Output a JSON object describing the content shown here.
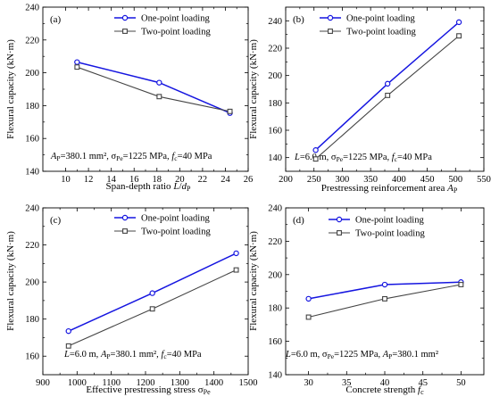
{
  "chart_data": [
    {
      "type": "line",
      "panel_label": "(a)",
      "xlabel": "Span-depth ratio L/dP",
      "ylabel": "Flexural capacity (kN·m)",
      "xlim": [
        8,
        26
      ],
      "ylim": [
        140,
        240
      ],
      "xticks": [
        10,
        12,
        14,
        16,
        18,
        20,
        22,
        24,
        26
      ],
      "yticks": [
        140,
        160,
        180,
        200,
        220,
        240
      ],
      "annotation": "AP=380.1 mm², σPe=1225 MPa, fc=40 MPa",
      "legend_position": "top-right",
      "grid": false,
      "series": [
        {
          "name": "One-point loading",
          "color": "#1515e0",
          "marker": "circle",
          "x": [
            11,
            18.2,
            24.4
          ],
          "y": [
            206.5,
            194,
            175.5
          ]
        },
        {
          "name": "Two-point loading",
          "color": "#444444",
          "marker": "square",
          "x": [
            11,
            18.2,
            24.4
          ],
          "y": [
            203.5,
            185.5,
            176.5
          ]
        }
      ]
    },
    {
      "type": "line",
      "panel_label": "(b)",
      "xlabel": "Prestressing reinforcement area AP",
      "ylabel": "Flexural capacity (kN·m)",
      "xlim": [
        200,
        550
      ],
      "ylim": [
        130,
        250
      ],
      "xticks": [
        200,
        250,
        300,
        350,
        400,
        450,
        500,
        550
      ],
      "yticks": [
        140,
        160,
        180,
        200,
        220,
        240
      ],
      "annotation": "L=6.0 m, σPe=1225 MPa, fc=40 MPa",
      "legend_position": "top-left",
      "grid": false,
      "series": [
        {
          "name": "One-point loading",
          "color": "#1515e0",
          "marker": "circle",
          "x": [
            253,
            380,
            506
          ],
          "y": [
            145.5,
            194,
            239
          ]
        },
        {
          "name": "Two-point loading",
          "color": "#444444",
          "marker": "square",
          "x": [
            253,
            380,
            506
          ],
          "y": [
            139,
            185.5,
            229
          ]
        }
      ]
    },
    {
      "type": "line",
      "panel_label": "(c)",
      "xlabel": "Effective prestressing stress σPe",
      "ylabel": "Flexural capacity (kN·m)",
      "xlim": [
        900,
        1500
      ],
      "ylim": [
        150,
        240
      ],
      "xticks": [
        900,
        1000,
        1100,
        1200,
        1300,
        1400,
        1500
      ],
      "yticks": [
        160,
        180,
        200,
        220,
        240
      ],
      "annotation": "L=6.0 m, AP=380.1 mm², fc=40 MPa",
      "legend_position": "top-right",
      "grid": false,
      "series": [
        {
          "name": "One-point loading",
          "color": "#1515e0",
          "marker": "circle",
          "x": [
            975,
            1220,
            1465
          ],
          "y": [
            173.5,
            194,
            215.5
          ]
        },
        {
          "name": "Two-point loading",
          "color": "#444444",
          "marker": "square",
          "x": [
            975,
            1220,
            1465
          ],
          "y": [
            165.5,
            185.5,
            206.5
          ]
        }
      ]
    },
    {
      "type": "line",
      "panel_label": "(d)",
      "xlabel": "Concrete strength fc",
      "ylabel": "Flexural capacity (kN·m)",
      "xlim": [
        27,
        53
      ],
      "ylim": [
        140,
        240
      ],
      "xticks": [
        30,
        35,
        40,
        45,
        50
      ],
      "yticks": [
        140,
        160,
        180,
        200,
        220,
        240
      ],
      "annotation": "L=6.0 m, σPe=1225 MPa, AP=380.1 mm²",
      "legend_position": "top-center",
      "grid": false,
      "series": [
        {
          "name": "One-point loading",
          "color": "#1515e0",
          "marker": "circle",
          "x": [
            30,
            40,
            50
          ],
          "y": [
            185.5,
            194,
            195.5
          ]
        },
        {
          "name": "Two-point loading",
          "color": "#444444",
          "marker": "square",
          "x": [
            30,
            40,
            50
          ],
          "y": [
            174.5,
            185.5,
            194
          ]
        }
      ]
    }
  ]
}
